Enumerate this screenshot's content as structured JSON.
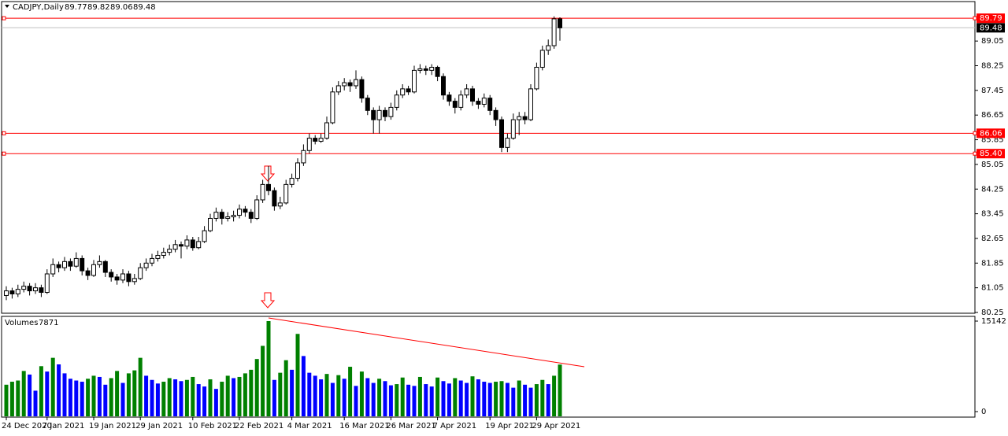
{
  "chart_data": {
    "type": "candlestick",
    "symbol": "CADJPY,Daily",
    "categories": [
      "24 Dec 2020",
      null,
      null,
      null,
      null,
      null,
      null,
      "7 Jan 2021",
      null,
      null,
      null,
      null,
      null,
      null,
      null,
      "19 Jan 2021",
      null,
      null,
      null,
      null,
      null,
      null,
      null,
      "29 Jan 2021",
      null,
      null,
      null,
      null,
      null,
      null,
      null,
      null,
      "10 Feb 2021",
      null,
      null,
      null,
      null,
      null,
      null,
      null,
      "22 Feb 2021",
      null,
      null,
      null,
      null,
      null,
      null,
      null,
      null,
      "4 Mar 2021",
      null,
      null,
      null,
      null,
      null,
      null,
      null,
      null,
      "16 Mar 2021",
      null,
      null,
      null,
      null,
      null,
      null,
      null,
      "26 Mar 2021",
      null,
      null,
      null,
      null,
      null,
      null,
      null,
      "7 Apr 2021",
      null,
      null,
      null,
      null,
      null,
      null,
      null,
      null,
      "19 Apr 2021",
      null,
      null,
      null,
      null,
      null,
      null,
      null,
      "29 Apr 2021",
      null,
      null,
      null,
      null
    ],
    "ohlc": [
      [
        80.8,
        81.1,
        80.65,
        80.95
      ],
      [
        80.95,
        81.05,
        80.7,
        80.85
      ],
      [
        80.85,
        81.15,
        80.75,
        81.0
      ],
      [
        81.0,
        81.25,
        80.9,
        81.1
      ],
      [
        81.1,
        81.2,
        80.8,
        80.95
      ],
      [
        80.95,
        81.2,
        80.85,
        81.05
      ],
      [
        81.05,
        81.15,
        80.75,
        80.9
      ],
      [
        80.9,
        81.65,
        80.85,
        81.5
      ],
      [
        81.5,
        82.0,
        81.4,
        81.8
      ],
      [
        81.8,
        81.9,
        81.55,
        81.7
      ],
      [
        81.7,
        82.05,
        81.6,
        81.9
      ],
      [
        81.9,
        82.0,
        81.6,
        81.75
      ],
      [
        81.75,
        82.2,
        81.7,
        82.0
      ],
      [
        82.0,
        82.1,
        81.45,
        81.6
      ],
      [
        81.6,
        81.7,
        81.3,
        81.45
      ],
      [
        81.45,
        81.95,
        81.4,
        81.8
      ],
      [
        81.8,
        82.1,
        81.7,
        81.9
      ],
      [
        81.9,
        81.95,
        81.4,
        81.55
      ],
      [
        81.55,
        81.65,
        81.25,
        81.4
      ],
      [
        81.4,
        81.5,
        81.15,
        81.3
      ],
      [
        81.3,
        81.65,
        81.2,
        81.5
      ],
      [
        81.5,
        81.6,
        81.1,
        81.25
      ],
      [
        81.25,
        81.5,
        81.15,
        81.35
      ],
      [
        81.35,
        81.85,
        81.3,
        81.7
      ],
      [
        81.7,
        82.0,
        81.6,
        81.85
      ],
      [
        81.85,
        82.15,
        81.75,
        82.0
      ],
      [
        82.0,
        82.25,
        81.9,
        82.1
      ],
      [
        82.1,
        82.35,
        82.0,
        82.2
      ],
      [
        82.2,
        82.45,
        82.1,
        82.3
      ],
      [
        82.3,
        82.6,
        82.2,
        82.45
      ],
      [
        82.45,
        82.55,
        82.0,
        82.4
      ],
      [
        82.4,
        82.75,
        82.3,
        82.6
      ],
      [
        82.6,
        82.7,
        82.25,
        82.35
      ],
      [
        82.35,
        82.7,
        82.3,
        82.55
      ],
      [
        82.55,
        83.05,
        82.5,
        82.9
      ],
      [
        82.9,
        83.45,
        82.85,
        83.3
      ],
      [
        83.3,
        83.65,
        83.2,
        83.5
      ],
      [
        83.5,
        83.6,
        83.1,
        83.3
      ],
      [
        83.3,
        83.5,
        83.2,
        83.35
      ],
      [
        83.35,
        83.55,
        83.2,
        83.4
      ],
      [
        83.4,
        83.75,
        83.3,
        83.6
      ],
      [
        83.6,
        83.7,
        83.35,
        83.5
      ],
      [
        83.5,
        83.6,
        83.15,
        83.3
      ],
      [
        83.3,
        84.05,
        83.25,
        83.9
      ],
      [
        83.9,
        84.55,
        83.8,
        84.4
      ],
      [
        84.4,
        85.0,
        84.05,
        84.2
      ],
      [
        84.2,
        84.3,
        83.55,
        83.7
      ],
      [
        83.7,
        84.0,
        83.6,
        83.8
      ],
      [
        83.8,
        84.55,
        83.75,
        84.4
      ],
      [
        84.4,
        84.75,
        84.3,
        84.6
      ],
      [
        84.6,
        85.25,
        84.5,
        85.1
      ],
      [
        85.1,
        85.7,
        85.0,
        85.5
      ],
      [
        85.5,
        86.05,
        85.4,
        85.9
      ],
      [
        85.9,
        86.0,
        85.7,
        85.8
      ],
      [
        85.8,
        86.05,
        85.75,
        85.9
      ],
      [
        85.9,
        86.6,
        85.85,
        86.4
      ],
      [
        86.4,
        87.55,
        86.35,
        87.4
      ],
      [
        87.4,
        87.75,
        87.3,
        87.6
      ],
      [
        87.6,
        87.85,
        87.45,
        87.7
      ],
      [
        87.7,
        87.8,
        87.4,
        87.6
      ],
      [
        87.6,
        88.1,
        87.5,
        87.8
      ],
      [
        87.8,
        87.9,
        87.05,
        87.2
      ],
      [
        87.2,
        87.3,
        86.65,
        86.8
      ],
      [
        86.8,
        86.9,
        86.05,
        86.5
      ],
      [
        86.5,
        86.95,
        86.05,
        86.8
      ],
      [
        86.8,
        86.9,
        86.45,
        86.6
      ],
      [
        86.6,
        87.05,
        86.5,
        86.9
      ],
      [
        86.9,
        87.45,
        86.8,
        87.3
      ],
      [
        87.3,
        87.65,
        87.2,
        87.5
      ],
      [
        87.5,
        87.6,
        87.3,
        87.4
      ],
      [
        87.4,
        88.25,
        87.35,
        88.1
      ],
      [
        88.1,
        88.3,
        88.0,
        88.15
      ],
      [
        88.15,
        88.25,
        87.95,
        88.1
      ],
      [
        88.1,
        88.3,
        87.95,
        88.2
      ],
      [
        88.2,
        88.25,
        87.75,
        87.9
      ],
      [
        87.9,
        88.0,
        87.15,
        87.3
      ],
      [
        87.3,
        87.4,
        86.95,
        87.1
      ],
      [
        87.1,
        87.2,
        86.7,
        86.9
      ],
      [
        86.9,
        87.45,
        86.8,
        87.3
      ],
      [
        87.3,
        87.65,
        87.2,
        87.5
      ],
      [
        87.5,
        87.6,
        86.95,
        87.1
      ],
      [
        87.1,
        87.2,
        86.85,
        87.0
      ],
      [
        87.0,
        87.35,
        86.9,
        87.2
      ],
      [
        87.2,
        87.3,
        86.65,
        86.8
      ],
      [
        86.8,
        86.9,
        86.3,
        86.5
      ],
      [
        86.5,
        86.6,
        85.45,
        85.6
      ],
      [
        85.6,
        86.05,
        85.45,
        85.9
      ],
      [
        85.9,
        86.7,
        85.85,
        86.5
      ],
      [
        86.5,
        86.75,
        86.0,
        86.6
      ],
      [
        86.6,
        86.75,
        86.35,
        86.5
      ],
      [
        86.5,
        87.65,
        86.45,
        87.5
      ],
      [
        87.5,
        88.35,
        87.45,
        88.2
      ],
      [
        88.2,
        88.9,
        88.1,
        88.75
      ],
      [
        88.75,
        89.1,
        88.6,
        88.9
      ],
      [
        88.9,
        89.85,
        88.8,
        89.77
      ],
      [
        89.77,
        89.82,
        89.06,
        89.48
      ]
    ],
    "up_color": "#ffffff",
    "down_color": "#000000",
    "ylim": [
      80.25,
      90.33
    ],
    "yticks": [
      89.05,
      88.25,
      87.45,
      86.65,
      85.85,
      85.05,
      84.25,
      83.45,
      82.65,
      81.85,
      81.05,
      80.25
    ],
    "levels": [
      89.79,
      86.06,
      {
        "value": 85.4,
        "label": "85.40"
      }
    ],
    "level_color": "#ff0000",
    "volume": {
      "label": "Volumes",
      "values": [
        4500,
        5000,
        5200,
        6800,
        6200,
        3500,
        7600,
        6700,
        9000,
        7900,
        6400,
        5500,
        5200,
        5000,
        5500,
        6000,
        5800,
        4500,
        5600,
        6800,
        4800,
        6400,
        6900,
        9000,
        6000,
        5300,
        4700,
        5000,
        5600,
        5400,
        5100,
        5300,
        5800,
        4600,
        4200,
        5400,
        3800,
        5000,
        6000,
        5600,
        5800,
        6400,
        7000,
        8800,
        11000,
        15142,
        5300,
        6500,
        8600,
        7000,
        13000,
        9300,
        6500,
        6000,
        5400,
        6300,
        4800,
        6100,
        5500,
        7500,
        4300,
        6700,
        5600,
        4800,
        5500,
        5100,
        4400,
        4600,
        5700,
        4500,
        4300,
        5800,
        4600,
        4200,
        5700,
        5100,
        4700,
        5600,
        5200,
        4800,
        5900,
        5400,
        5000,
        4800,
        5000,
        5100,
        4800,
        4000,
        5200,
        4500,
        4000,
        4600,
        5300,
        4600,
        6000,
        7871
      ],
      "ylim": [
        0,
        15142
      ],
      "yticks": [
        15142,
        0
      ],
      "up_color": "#008000",
      "down_color": "#0000ff"
    }
  }
}
